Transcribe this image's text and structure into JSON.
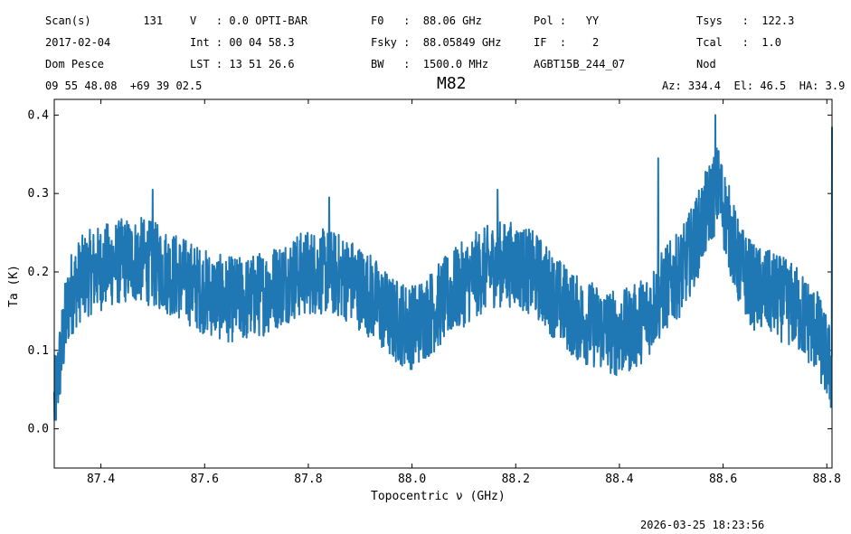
{
  "header": {
    "row1": [
      "Scan(s)        131",
      "V   : 0.0 OPTI-BAR",
      "F0   :  88.06 GHz",
      "Pol :   YY",
      "Tsys   :  122.3"
    ],
    "row2": [
      "2017-02-04",
      "Int : 00 04 58.3",
      "Fsky :  88.05849 GHz",
      "IF  :    2",
      "Tcal   :  1.0"
    ],
    "row3": [
      "Dom Pesce",
      "LST : 13 51 26.6",
      "BW   :  1500.0 MHz",
      "AGBT15B_244_07",
      "Nod"
    ],
    "coords": "09 55 48.08  +69 39 02.5",
    "azel": "Az: 334.4  El: 46.5  HA: 3.9"
  },
  "timestamp": "2026-03-25 18:23:56",
  "chart_data": {
    "type": "line",
    "title": "M82",
    "xlabel": "Topocentric ν (GHz)",
    "ylabel": "Ta (K)",
    "xlim": [
      87.31,
      88.81
    ],
    "ylim": [
      -0.05,
      0.42
    ],
    "xticks": [
      "87.4",
      "87.6",
      "87.8",
      "88.0",
      "88.2",
      "88.4",
      "88.6",
      "88.8"
    ],
    "xtick_values": [
      87.4,
      87.6,
      87.8,
      88.0,
      88.2,
      88.4,
      88.6,
      88.8
    ],
    "yticks": [
      "0.0",
      "0.1",
      "0.2",
      "0.3",
      "0.4"
    ],
    "ytick_values": [
      0.0,
      0.1,
      0.2,
      0.3,
      0.4
    ],
    "grid": false,
    "color": "#1f77b4",
    "series": [
      {
        "x": [
          87.31,
          87.32,
          87.33,
          87.34,
          87.36,
          87.38,
          87.4,
          87.42,
          87.45,
          87.48,
          87.5,
          87.53,
          87.56,
          87.6,
          87.64,
          87.68,
          87.72,
          87.76,
          87.8,
          87.84,
          87.88,
          87.92,
          87.96,
          88.0,
          88.04,
          88.08,
          88.12,
          88.16,
          88.2,
          88.24,
          88.28,
          88.32,
          88.36,
          88.4,
          88.43,
          88.46,
          88.49,
          88.52,
          88.55,
          88.57,
          88.59,
          88.61,
          88.63,
          88.66,
          88.7,
          88.74,
          88.78,
          88.8,
          88.81
        ],
        "y": [
          0.03,
          0.08,
          0.13,
          0.17,
          0.19,
          0.2,
          0.205,
          0.21,
          0.215,
          0.215,
          0.21,
          0.2,
          0.19,
          0.175,
          0.165,
          0.165,
          0.175,
          0.19,
          0.2,
          0.2,
          0.19,
          0.17,
          0.14,
          0.13,
          0.15,
          0.175,
          0.195,
          0.21,
          0.21,
          0.195,
          0.165,
          0.14,
          0.13,
          0.12,
          0.13,
          0.15,
          0.18,
          0.2,
          0.245,
          0.28,
          0.31,
          0.26,
          0.21,
          0.18,
          0.17,
          0.155,
          0.125,
          0.09,
          0.07
        ]
      }
    ],
    "spikes": [
      {
        "x": 87.5,
        "y": 0.305
      },
      {
        "x": 87.84,
        "y": 0.295
      },
      {
        "x": 88.165,
        "y": 0.305
      },
      {
        "x": 88.475,
        "y": 0.345
      },
      {
        "x": 88.585,
        "y": 0.4
      },
      {
        "x": 88.81,
        "y": 0.385
      }
    ]
  }
}
